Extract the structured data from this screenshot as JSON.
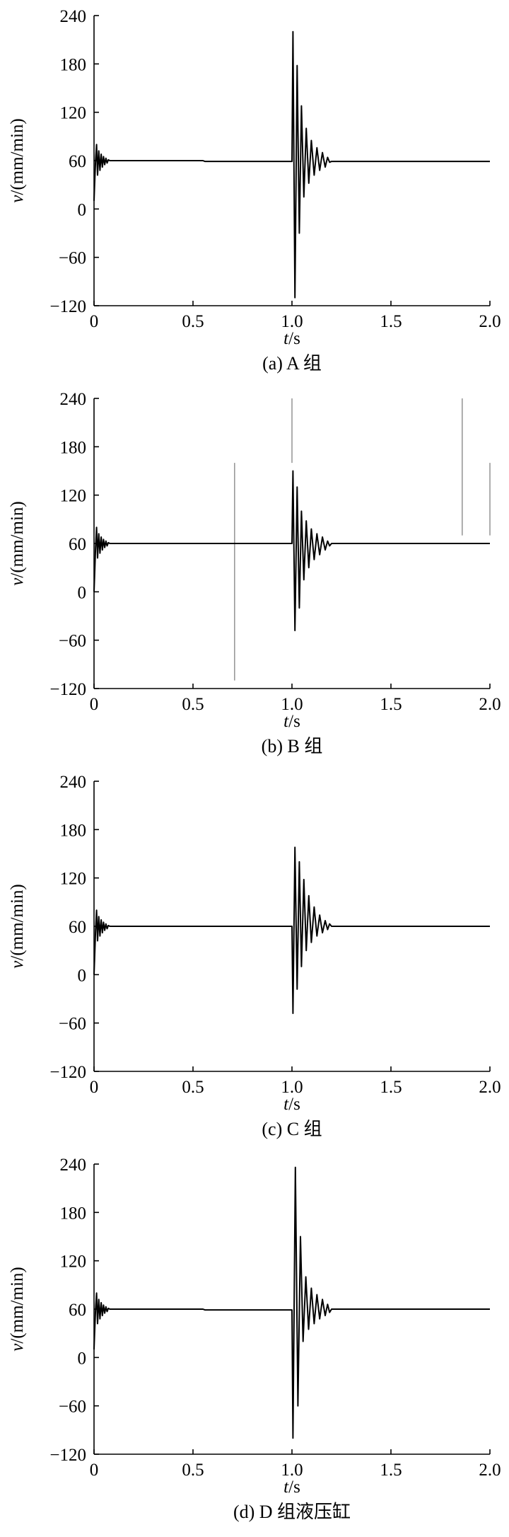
{
  "colors": {
    "series": "#000000",
    "artifact": "#9a9a9a",
    "axis": "#000000"
  },
  "chart_data": [
    {
      "type": "line",
      "caption": "(a)  A 组",
      "xlabel_var": "t",
      "xlabel_unit": "/s",
      "ylabel_var": "v",
      "ylabel_unit": "/(mm/min)",
      "xlim": [
        0,
        2.0
      ],
      "ylim": [
        -120,
        240
      ],
      "xticks": [
        0,
        0.5,
        1.0,
        1.5,
        2.0
      ],
      "xtick_labels": [
        "0",
        "0.5",
        "1.0",
        "1.5",
        "2.0"
      ],
      "yticks": [
        -120,
        -60,
        0,
        60,
        120,
        180,
        240
      ],
      "ytick_labels": [
        "−120",
        "−60",
        "0",
        "60",
        "120",
        "180",
        "240"
      ],
      "grid": false,
      "series": [
        {
          "x": [
            0,
            0.003,
            0.008,
            0.013,
            0.018,
            0.024,
            0.03,
            0.036,
            0.042,
            0.048,
            0.054,
            0.06,
            0.066,
            0.072,
            0.08,
            0.09,
            0.1,
            0.55,
            0.56,
            1.0,
            1.005,
            1.015,
            1.026,
            1.037,
            1.048,
            1.06,
            1.072,
            1.085,
            1.098,
            1.112,
            1.126,
            1.14,
            1.154,
            1.168,
            1.18,
            1.19,
            1.2,
            2.0
          ],
          "y": [
            10,
            30,
            60,
            80,
            42,
            72,
            48,
            68,
            52,
            65,
            55,
            63,
            57,
            61,
            60,
            60,
            60,
            60,
            59,
            59,
            220,
            -110,
            178,
            -30,
            128,
            15,
            100,
            32,
            85,
            42,
            76,
            48,
            70,
            52,
            64,
            58,
            59,
            59
          ]
        }
      ],
      "artifacts": []
    },
    {
      "type": "line",
      "caption": "(b)  B 组",
      "xlabel_var": "t",
      "xlabel_unit": "/s",
      "ylabel_var": "v",
      "ylabel_unit": "/(mm/min)",
      "xlim": [
        0,
        2.0
      ],
      "ylim": [
        -120,
        240
      ],
      "xticks": [
        0,
        0.5,
        1.0,
        1.5,
        2.0
      ],
      "xtick_labels": [
        "0",
        "0.5",
        "1.0",
        "1.5",
        "2.0"
      ],
      "yticks": [
        -120,
        -60,
        0,
        60,
        120,
        180,
        240
      ],
      "ytick_labels": [
        "−120",
        "−60",
        "0",
        "60",
        "120",
        "180",
        "240"
      ],
      "grid": false,
      "series": [
        {
          "x": [
            0,
            0.003,
            0.008,
            0.013,
            0.018,
            0.024,
            0.03,
            0.036,
            0.042,
            0.048,
            0.054,
            0.06,
            0.066,
            0.072,
            0.08,
            0.09,
            0.1,
            1.0,
            1.005,
            1.015,
            1.026,
            1.037,
            1.048,
            1.06,
            1.072,
            1.085,
            1.098,
            1.112,
            1.126,
            1.14,
            1.154,
            1.168,
            1.18,
            1.19,
            1.2,
            2.0
          ],
          "y": [
            0,
            20,
            55,
            80,
            42,
            72,
            48,
            68,
            52,
            65,
            55,
            63,
            57,
            61,
            60,
            60,
            60,
            60,
            150,
            -48,
            130,
            -20,
            100,
            15,
            88,
            30,
            78,
            40,
            72,
            46,
            68,
            52,
            63,
            57,
            60,
            60
          ]
        }
      ],
      "artifacts": [
        {
          "x": 0.71,
          "y_from": -110,
          "y_to": 160
        },
        {
          "x": 1.0,
          "y_from": 160,
          "y_to": 240
        },
        {
          "x": 1.86,
          "y_from": 70,
          "y_to": 240
        },
        {
          "x": 2.0,
          "y_from": 70,
          "y_to": 160
        }
      ]
    },
    {
      "type": "line",
      "caption": "(c)  C 组",
      "xlabel_var": "t",
      "xlabel_unit": "/s",
      "ylabel_var": "v",
      "ylabel_unit": "/(mm/min)",
      "xlim": [
        0,
        2.0
      ],
      "ylim": [
        -120,
        240
      ],
      "xticks": [
        0,
        0.5,
        1.0,
        1.5,
        2.0
      ],
      "xtick_labels": [
        "0",
        "0.5",
        "1.0",
        "1.5",
        "2.0"
      ],
      "yticks": [
        -120,
        -60,
        0,
        60,
        120,
        180,
        240
      ],
      "ytick_labels": [
        "−120",
        "−60",
        "0",
        "60",
        "120",
        "180",
        "240"
      ],
      "grid": false,
      "series": [
        {
          "x": [
            0,
            0.003,
            0.008,
            0.013,
            0.018,
            0.024,
            0.03,
            0.036,
            0.042,
            0.048,
            0.054,
            0.06,
            0.066,
            0.072,
            0.08,
            0.09,
            0.1,
            1.0,
            1.005,
            1.015,
            1.026,
            1.037,
            1.048,
            1.06,
            1.072,
            1.085,
            1.098,
            1.112,
            1.126,
            1.14,
            1.154,
            1.168,
            1.18,
            1.19,
            1.2,
            2.0
          ],
          "y": [
            0,
            20,
            55,
            80,
            42,
            72,
            48,
            68,
            52,
            65,
            55,
            63,
            57,
            61,
            60,
            60,
            60,
            60,
            -48,
            158,
            -18,
            140,
            10,
            118,
            30,
            98,
            40,
            84,
            48,
            74,
            52,
            67,
            56,
            63,
            60,
            60
          ]
        }
      ],
      "artifacts": []
    },
    {
      "type": "line",
      "caption": "(d)  D 组液压缸",
      "xlabel_var": "t",
      "xlabel_unit": "/s",
      "ylabel_var": "v",
      "ylabel_unit": "/(mm/min)",
      "xlim": [
        0,
        2.0
      ],
      "ylim": [
        -120,
        240
      ],
      "xticks": [
        0,
        0.5,
        1.0,
        1.5,
        2.0
      ],
      "xtick_labels": [
        "0",
        "0.5",
        "1.0",
        "1.5",
        "2.0"
      ],
      "yticks": [
        -120,
        -60,
        0,
        60,
        120,
        180,
        240
      ],
      "ytick_labels": [
        "−120",
        "−60",
        "0",
        "60",
        "120",
        "180",
        "240"
      ],
      "grid": false,
      "series": [
        {
          "x": [
            0,
            0.003,
            0.008,
            0.013,
            0.018,
            0.024,
            0.03,
            0.036,
            0.042,
            0.048,
            0.054,
            0.06,
            0.066,
            0.072,
            0.08,
            0.09,
            0.1,
            0.55,
            0.56,
            1.0,
            1.005,
            1.017,
            1.03,
            1.043,
            1.056,
            1.07,
            1.084,
            1.098,
            1.112,
            1.126,
            1.14,
            1.154,
            1.168,
            1.18,
            1.19,
            1.2,
            2.0
          ],
          "y": [
            10,
            30,
            60,
            80,
            42,
            72,
            48,
            68,
            52,
            65,
            55,
            63,
            57,
            61,
            60,
            60,
            60,
            60,
            59,
            59,
            -100,
            236,
            -60,
            150,
            20,
            100,
            35,
            86,
            42,
            78,
            48,
            72,
            52,
            66,
            56,
            60,
            60
          ]
        }
      ],
      "artifacts": []
    }
  ]
}
